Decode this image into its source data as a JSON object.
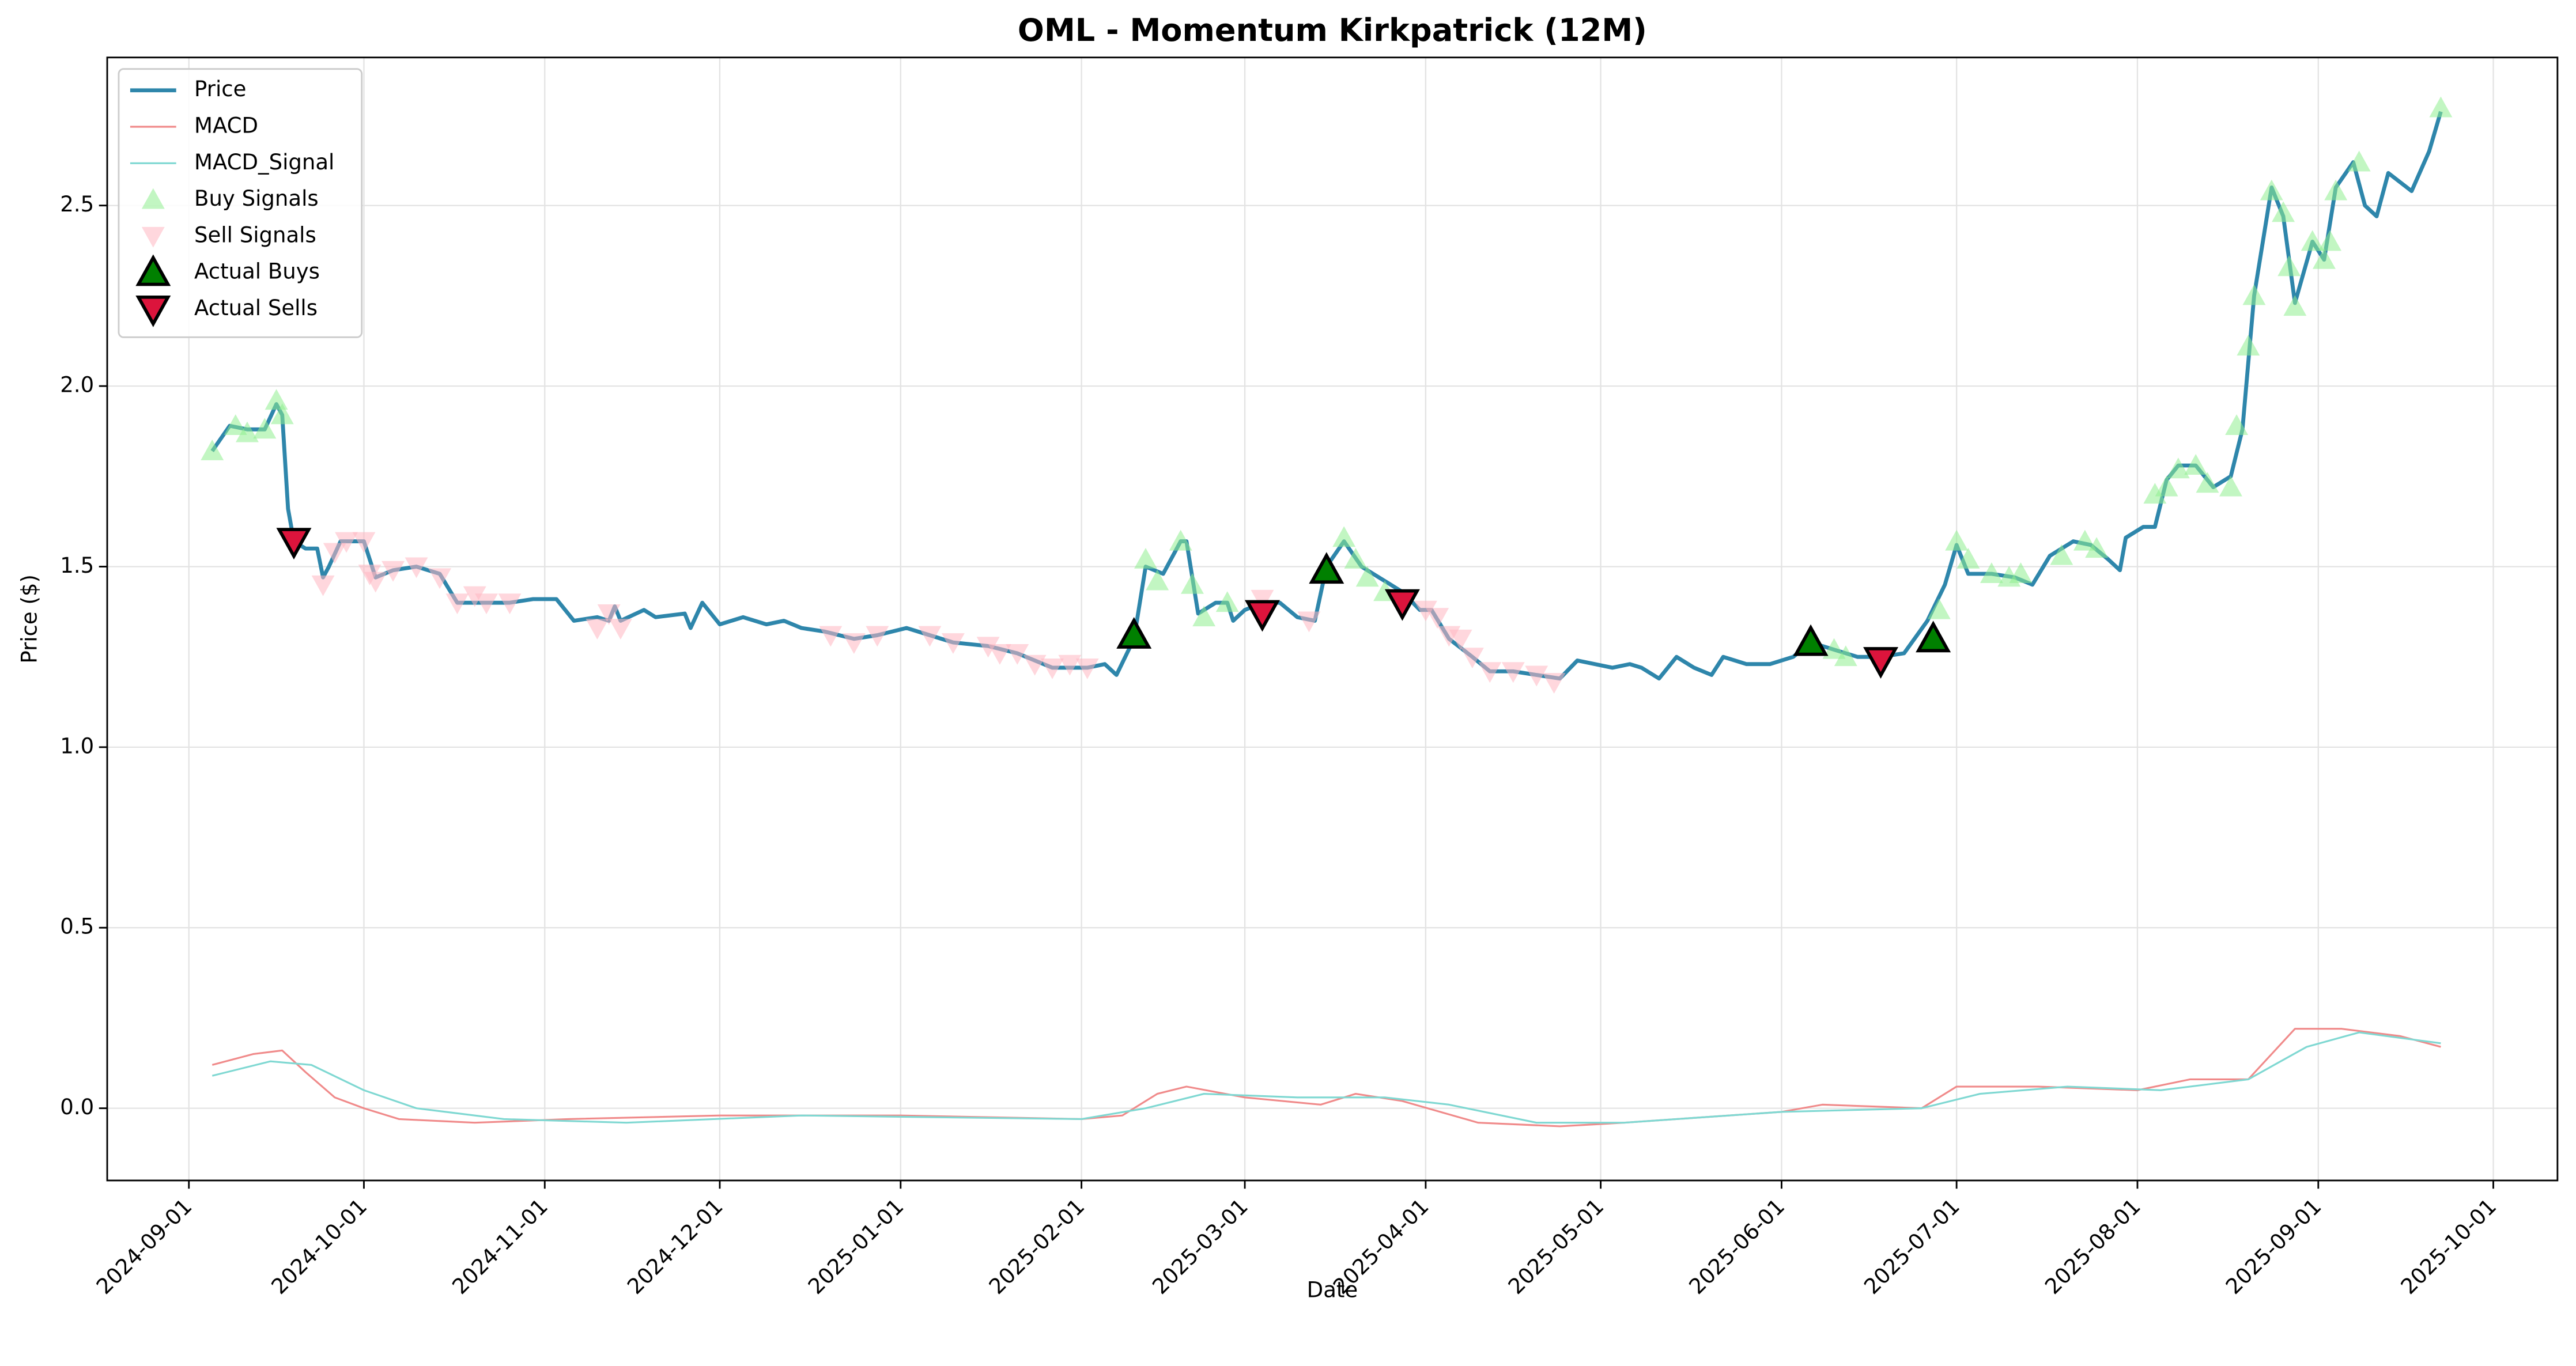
{
  "chart_data": {
    "type": "line",
    "title": "OML - Momentum Kirkpatrick (12M)",
    "xlabel": "Date",
    "ylabel": "Price ($)",
    "xlim": [
      "2024-08-18",
      "2025-10-12"
    ],
    "xticks": [
      "2024-09-01",
      "2024-10-01",
      "2024-11-01",
      "2024-12-01",
      "2025-01-01",
      "2025-02-01",
      "2025-03-01",
      "2025-04-01",
      "2025-05-01",
      "2025-06-01",
      "2025-07-01",
      "2025-08-01",
      "2025-09-01",
      "2025-10-01"
    ],
    "ylim": [
      -0.2,
      2.91
    ],
    "yticks": [
      {
        "value": 0,
        "label": "0.0"
      },
      0.5,
      {
        "value": 1,
        "label": "1.0"
      },
      1.5,
      {
        "value": 2,
        "label": "2.0"
      },
      2.5
    ],
    "grid": true,
    "legend": "upper left",
    "series": [
      {
        "name": "Price",
        "type": "line",
        "color": "#2e86ab",
        "width": 2.4,
        "x": [
          "2024-09-05",
          "2024-09-08",
          "2024-09-11",
          "2024-09-14",
          "2024-09-16",
          "2024-09-17",
          "2024-09-18",
          "2024-09-19",
          "2024-09-21",
          "2024-09-23",
          "2024-09-24",
          "2024-09-25",
          "2024-09-27",
          "2024-10-01",
          "2024-10-03",
          "2024-10-06",
          "2024-10-10",
          "2024-10-14",
          "2024-10-17",
          "2024-10-22",
          "2024-10-26",
          "2024-10-30",
          "2024-11-03",
          "2024-11-06",
          "2024-11-10",
          "2024-11-12",
          "2024-11-13",
          "2024-11-14",
          "2024-11-18",
          "2024-11-20",
          "2024-11-25",
          "2024-11-26",
          "2024-11-28",
          "2024-12-01",
          "2024-12-05",
          "2024-12-09",
          "2024-12-12",
          "2024-12-15",
          "2024-12-19",
          "2024-12-24",
          "2024-12-28",
          "2025-01-02",
          "2025-01-06",
          "2025-01-10",
          "2025-01-16",
          "2025-01-21",
          "2025-01-27",
          "2025-02-02",
          "2025-02-05",
          "2025-02-07",
          "2025-02-10",
          "2025-02-12",
          "2025-02-15",
          "2025-02-18",
          "2025-02-19",
          "2025-02-21",
          "2025-02-24",
          "2025-02-26",
          "2025-02-27",
          "2025-03-01",
          "2025-03-04",
          "2025-03-07",
          "2025-03-10",
          "2025-03-13",
          "2025-03-15",
          "2025-03-18",
          "2025-03-21",
          "2025-03-24",
          "2025-03-28",
          "2025-03-31",
          "2025-04-02",
          "2025-04-05",
          "2025-04-09",
          "2025-04-12",
          "2025-04-16",
          "2025-04-24",
          "2025-04-27",
          "2025-05-03",
          "2025-05-06",
          "2025-05-08",
          "2025-05-11",
          "2025-05-14",
          "2025-05-17",
          "2025-05-20",
          "2025-05-22",
          "2025-05-26",
          "2025-05-30",
          "2025-06-03",
          "2025-06-06",
          "2025-06-10",
          "2025-06-14",
          "2025-06-18",
          "2025-06-22",
          "2025-06-26",
          "2025-06-29",
          "2025-07-01",
          "2025-07-03",
          "2025-07-07",
          "2025-07-11",
          "2025-07-14",
          "2025-07-17",
          "2025-07-21",
          "2025-07-24",
          "2025-07-27",
          "2025-07-29",
          "2025-07-30",
          "2025-08-02",
          "2025-08-04",
          "2025-08-06",
          "2025-08-08",
          "2025-08-11",
          "2025-08-14",
          "2025-08-17",
          "2025-08-19",
          "2025-08-21",
          "2025-08-24",
          "2025-08-26",
          "2025-08-28",
          "2025-08-31",
          "2025-09-02",
          "2025-09-04",
          "2025-09-07",
          "2025-09-09",
          "2025-09-11",
          "2025-09-13",
          "2025-09-17",
          "2025-09-20",
          "2025-09-22"
        ],
        "values": [
          1.82,
          1.89,
          1.88,
          1.88,
          1.95,
          1.92,
          1.66,
          1.57,
          1.55,
          1.55,
          1.47,
          1.5,
          1.57,
          1.57,
          1.47,
          1.49,
          1.5,
          1.48,
          1.4,
          1.4,
          1.4,
          1.41,
          1.41,
          1.35,
          1.36,
          1.35,
          1.39,
          1.35,
          1.38,
          1.36,
          1.37,
          1.33,
          1.4,
          1.34,
          1.36,
          1.34,
          1.35,
          1.33,
          1.32,
          1.3,
          1.31,
          1.33,
          1.31,
          1.29,
          1.28,
          1.26,
          1.22,
          1.22,
          1.23,
          1.2,
          1.3,
          1.5,
          1.48,
          1.57,
          1.57,
          1.37,
          1.4,
          1.4,
          1.35,
          1.38,
          1.4,
          1.4,
          1.36,
          1.35,
          1.5,
          1.57,
          1.5,
          1.47,
          1.43,
          1.38,
          1.38,
          1.3,
          1.25,
          1.21,
          1.21,
          1.19,
          1.24,
          1.22,
          1.23,
          1.22,
          1.19,
          1.25,
          1.22,
          1.2,
          1.25,
          1.23,
          1.23,
          1.25,
          1.29,
          1.27,
          1.25,
          1.25,
          1.26,
          1.35,
          1.45,
          1.56,
          1.48,
          1.48,
          1.47,
          1.45,
          1.53,
          1.57,
          1.56,
          1.52,
          1.49,
          1.58,
          1.61,
          1.61,
          1.74,
          1.78,
          1.78,
          1.72,
          1.75,
          1.88,
          2.25,
          2.55,
          2.47,
          2.23,
          2.4,
          2.35,
          2.55,
          2.62,
          2.5,
          2.47,
          2.59,
          2.54,
          2.65,
          2.76
        ]
      },
      {
        "name": "MACD",
        "type": "line",
        "color": "#f08a8a",
        "width": 1.1,
        "x": [
          "2024-09-05",
          "2024-09-12",
          "2024-09-17",
          "2024-09-21",
          "2024-09-26",
          "2024-10-01",
          "2024-10-07",
          "2024-10-20",
          "2024-11-05",
          "2024-12-01",
          "2025-01-01",
          "2025-02-01",
          "2025-02-08",
          "2025-02-14",
          "2025-02-19",
          "2025-03-01",
          "2025-03-14",
          "2025-03-20",
          "2025-03-28",
          "2025-04-10",
          "2025-04-24",
          "2025-05-05",
          "2025-06-01",
          "2025-06-08",
          "2025-06-25",
          "2025-07-01",
          "2025-07-15",
          "2025-08-01",
          "2025-08-10",
          "2025-08-20",
          "2025-08-28",
          "2025-09-05",
          "2025-09-15",
          "2025-09-22"
        ],
        "values": [
          0.12,
          0.15,
          0.16,
          0.1,
          0.03,
          0,
          -0.03,
          -0.04,
          -0.03,
          -0.02,
          -0.02,
          -0.03,
          -0.02,
          0.04,
          0.06,
          0.03,
          0.01,
          0.04,
          0.02,
          -0.04,
          -0.05,
          -0.04,
          -0.01,
          0.01,
          0,
          0.06,
          0.06,
          0.05,
          0.08,
          0.08,
          0.22,
          0.22,
          0.2,
          0.17
        ]
      },
      {
        "name": "MACD_Signal",
        "type": "line",
        "color": "#7fd8d2",
        "width": 1.1,
        "x": [
          "2024-09-05",
          "2024-09-15",
          "2024-09-22",
          "2024-10-01",
          "2024-10-10",
          "2024-10-25",
          "2024-11-15",
          "2024-12-15",
          "2025-02-01",
          "2025-02-12",
          "2025-02-22",
          "2025-03-10",
          "2025-03-25",
          "2025-04-05",
          "2025-04-20",
          "2025-05-05",
          "2025-06-01",
          "2025-06-25",
          "2025-07-05",
          "2025-07-20",
          "2025-08-05",
          "2025-08-20",
          "2025-08-30",
          "2025-09-08",
          "2025-09-22"
        ],
        "values": [
          0.09,
          0.13,
          0.12,
          0.05,
          0,
          -0.03,
          -0.04,
          -0.02,
          -0.03,
          0,
          0.04,
          0.03,
          0.03,
          0.01,
          -0.04,
          -0.04,
          -0.01,
          0,
          0.04,
          0.06,
          0.05,
          0.08,
          0.17,
          0.21,
          0.18
        ]
      },
      {
        "name": "Buy Signals",
        "type": "scatter",
        "marker": "up",
        "color": "#90ee90",
        "opacity": 0.55,
        "size": 7,
        "x": [
          "2024-09-05",
          "2024-09-09",
          "2024-09-11",
          "2024-09-14",
          "2024-09-16",
          "2024-09-17",
          "2025-02-12",
          "2025-02-14",
          "2025-02-18",
          "2025-02-20",
          "2025-02-22",
          "2025-02-26",
          "2025-03-18",
          "2025-03-20",
          "2025-03-22",
          "2025-03-25",
          "2025-06-10",
          "2025-06-12",
          "2025-06-28",
          "2025-07-01",
          "2025-07-03",
          "2025-07-07",
          "2025-07-10",
          "2025-07-12",
          "2025-07-19",
          "2025-07-23",
          "2025-07-25",
          "2025-08-04",
          "2025-08-06",
          "2025-08-08",
          "2025-08-11",
          "2025-08-13",
          "2025-08-17",
          "2025-08-18",
          "2025-08-20",
          "2025-08-21",
          "2025-08-24",
          "2025-08-26",
          "2025-08-27",
          "2025-08-28",
          "2025-08-31",
          "2025-09-02",
          "2025-09-03",
          "2025-09-04",
          "2025-09-08",
          "2025-09-22"
        ],
        "values": [
          1.82,
          1.89,
          1.87,
          1.88,
          1.96,
          1.92,
          1.52,
          1.46,
          1.57,
          1.45,
          1.36,
          1.4,
          1.58,
          1.52,
          1.47,
          1.43,
          1.27,
          1.25,
          1.38,
          1.57,
          1.52,
          1.48,
          1.47,
          1.48,
          1.53,
          1.57,
          1.55,
          1.7,
          1.72,
          1.77,
          1.78,
          1.73,
          1.72,
          1.89,
          2.11,
          2.25,
          2.54,
          2.48,
          2.33,
          2.22,
          2.4,
          2.35,
          2.4,
          2.54,
          2.62,
          2.77
        ]
      },
      {
        "name": "Sell Signals",
        "type": "scatter",
        "marker": "down",
        "color": "#ffb6c1",
        "opacity": 0.55,
        "size": 7,
        "x": [
          "2024-09-19",
          "2024-09-24",
          "2024-09-26",
          "2024-09-28",
          "2024-10-01",
          "2024-10-02",
          "2024-10-03",
          "2024-10-06",
          "2024-10-10",
          "2024-10-14",
          "2024-10-17",
          "2024-10-20",
          "2024-10-22",
          "2024-10-26",
          "2024-11-10",
          "2024-11-12",
          "2024-11-14",
          "2024-12-20",
          "2024-12-24",
          "2024-12-28",
          "2025-01-06",
          "2025-01-10",
          "2025-01-16",
          "2025-01-18",
          "2025-01-21",
          "2025-01-24",
          "2025-01-27",
          "2025-01-30",
          "2025-02-02",
          "2025-03-04",
          "2025-03-12",
          "2025-03-28",
          "2025-04-01",
          "2025-04-03",
          "2025-04-05",
          "2025-04-07",
          "2025-04-09",
          "2025-04-12",
          "2025-04-16",
          "2025-04-20",
          "2025-04-23"
        ],
        "values": [
          1.57,
          1.45,
          1.54,
          1.57,
          1.57,
          1.48,
          1.46,
          1.49,
          1.5,
          1.47,
          1.4,
          1.42,
          1.4,
          1.4,
          1.33,
          1.37,
          1.33,
          1.31,
          1.29,
          1.31,
          1.31,
          1.29,
          1.28,
          1.26,
          1.26,
          1.23,
          1.22,
          1.23,
          1.22,
          1.41,
          1.35,
          1.4,
          1.38,
          1.36,
          1.31,
          1.3,
          1.25,
          1.21,
          1.21,
          1.2,
          1.18
        ]
      },
      {
        "name": "Actual Buys",
        "type": "scatter",
        "marker": "up",
        "color": "#008000",
        "edge": "#000000",
        "opacity": 1,
        "size": 9,
        "x": [
          "2025-02-10",
          "2025-03-15",
          "2025-06-06",
          "2025-06-27"
        ],
        "values": [
          1.31,
          1.49,
          1.29,
          1.3
        ]
      },
      {
        "name": "Actual Sells",
        "type": "scatter",
        "marker": "down",
        "color": "#dc143c",
        "edge": "#000000",
        "opacity": 1,
        "size": 9,
        "x": [
          "2024-09-19",
          "2025-03-04",
          "2025-03-28",
          "2025-06-18"
        ],
        "values": [
          1.57,
          1.37,
          1.4,
          1.24
        ]
      }
    ]
  }
}
